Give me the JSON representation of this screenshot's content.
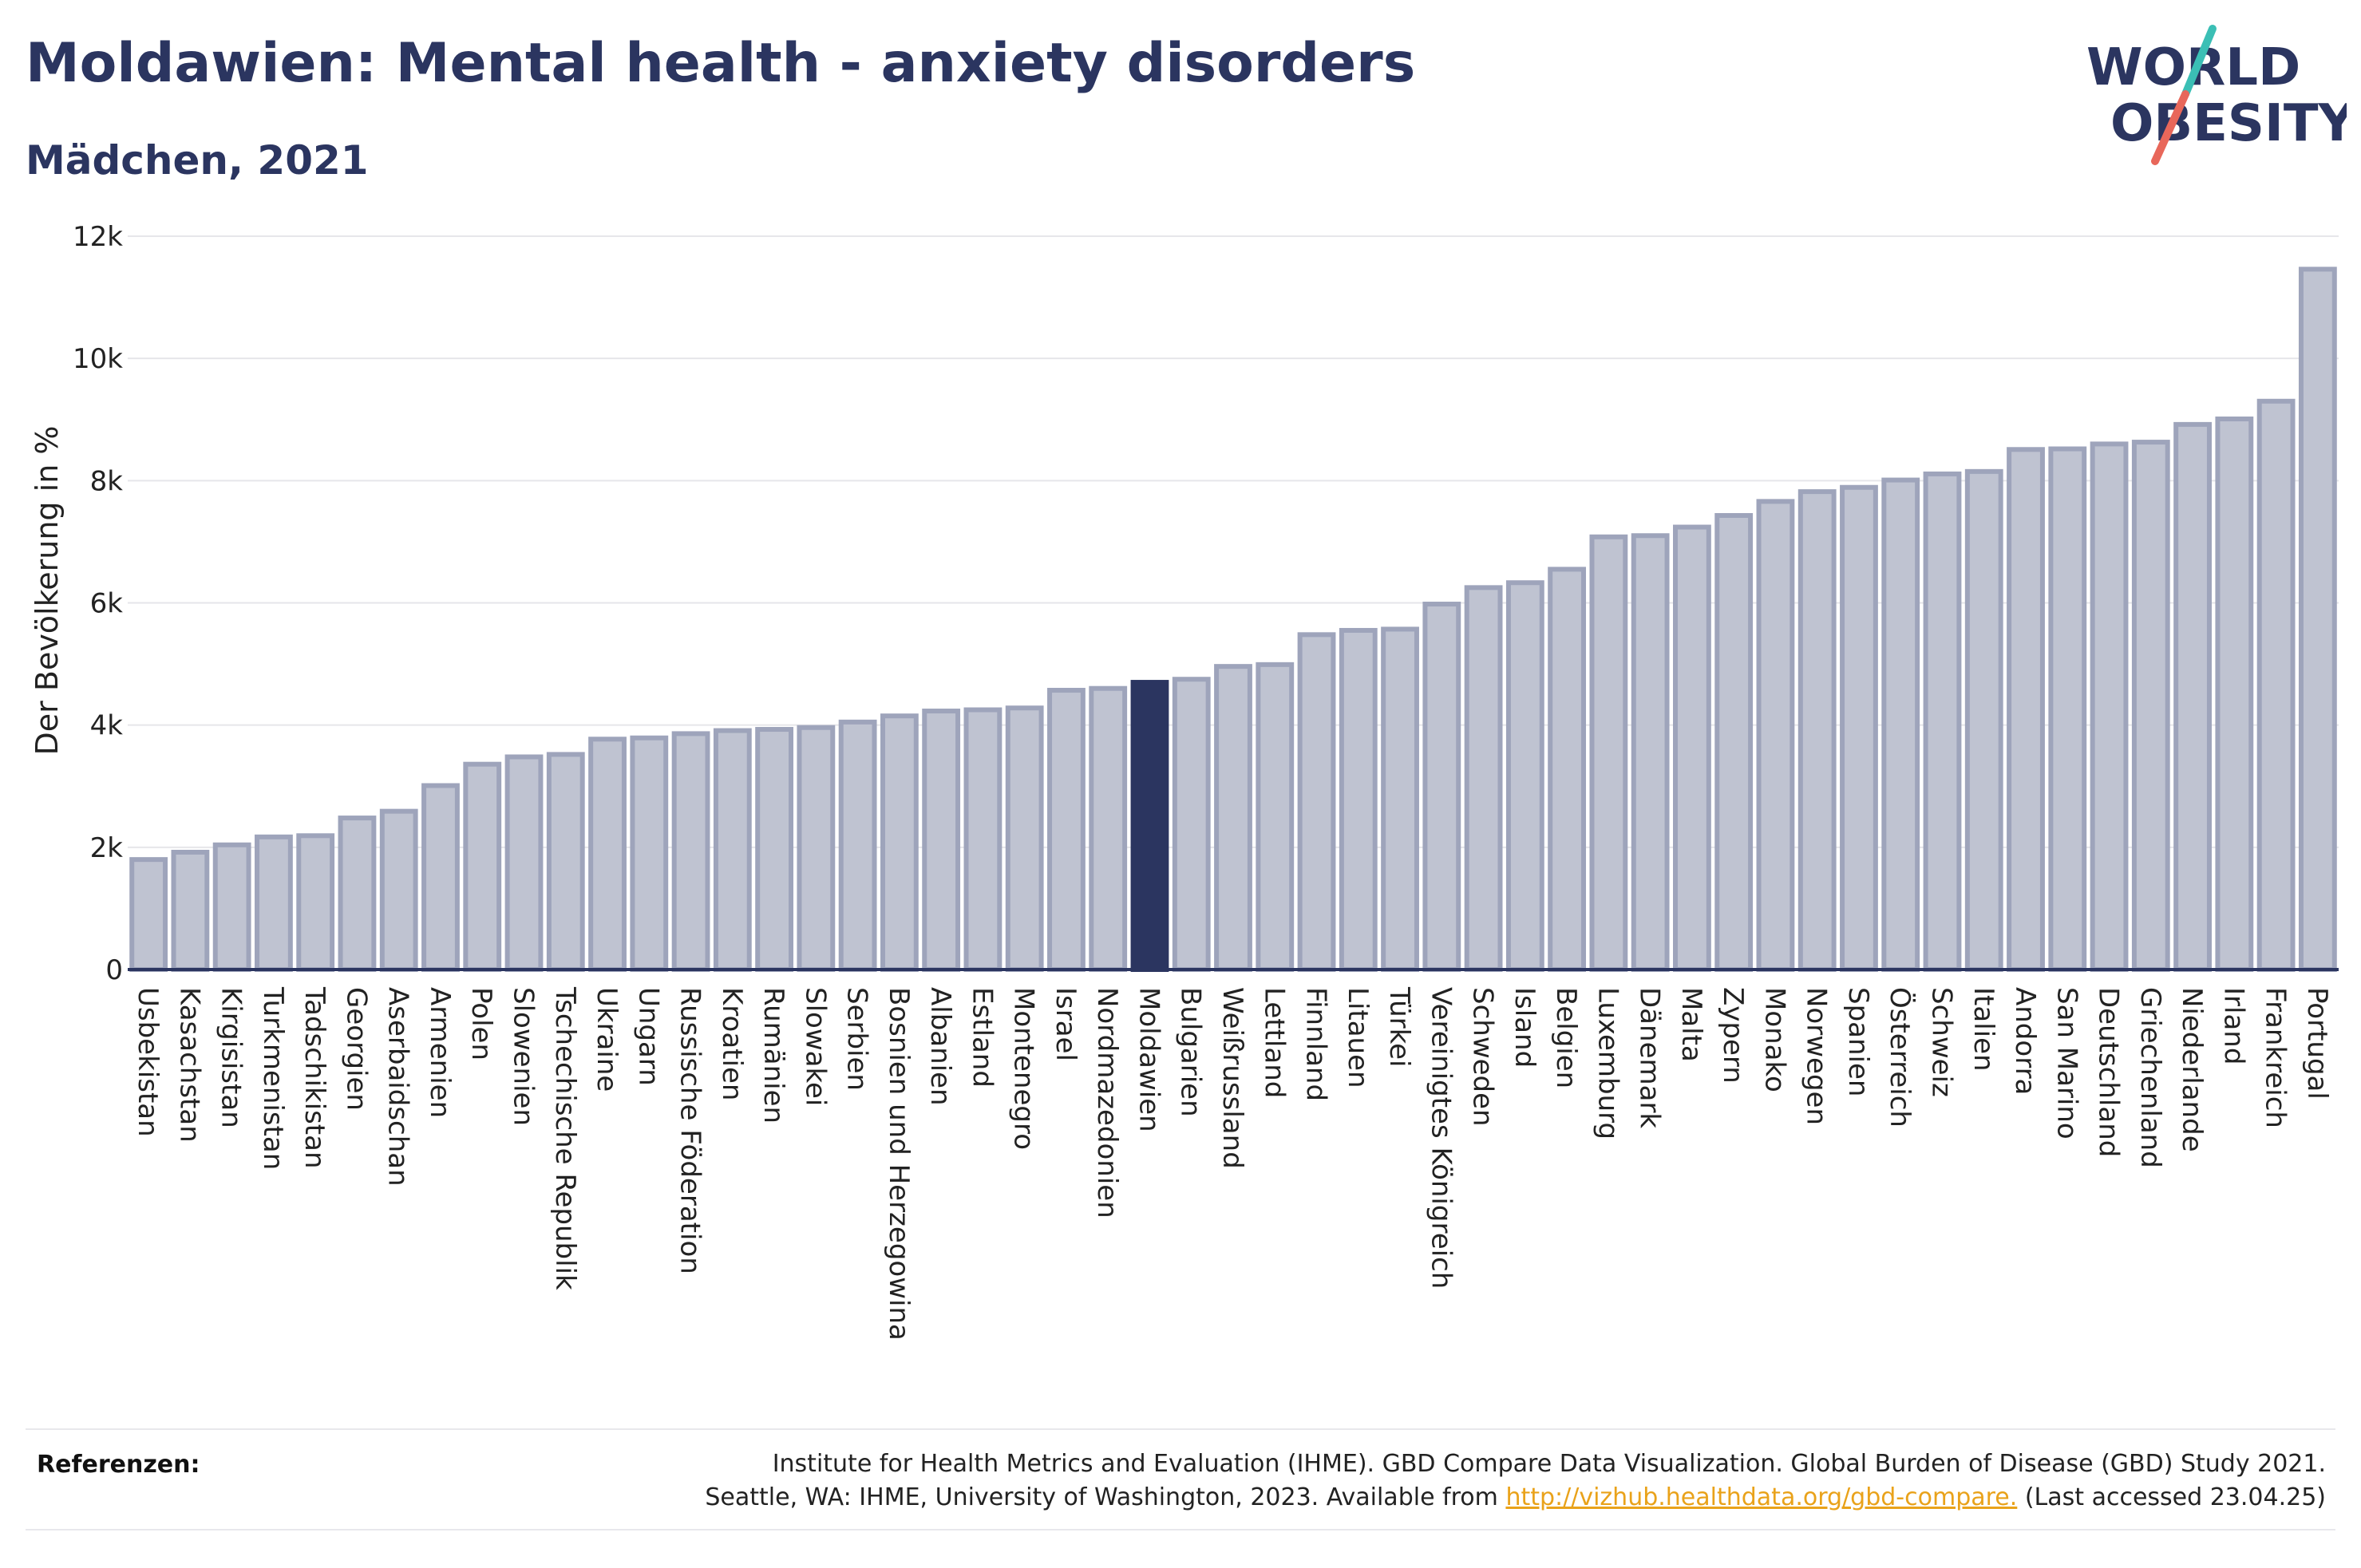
{
  "header": {
    "title": "Moldawien: Mental health - anxiety disorders",
    "subtitle": "Mädchen, 2021"
  },
  "logo": {
    "line1": "WORLD",
    "line2": "OBESITY",
    "colors": {
      "text": "#2b3560",
      "slash_red": "#e8675a",
      "slash_teal": "#3bbfb5"
    }
  },
  "chart_data": {
    "type": "bar",
    "ylabel": "Der Bevölkerung in %",
    "xlabel": "",
    "ylim": [
      0,
      12000
    ],
    "yticks": [
      0,
      2000,
      4000,
      6000,
      8000,
      10000,
      12000
    ],
    "ytick_labels": [
      "0",
      "2k",
      "4k",
      "6k",
      "8k",
      "10k",
      "12k"
    ],
    "grid": true,
    "highlight": "Moldawien",
    "colors": {
      "bar": "#bfc3d1",
      "bar_edge": "#9ea4bb",
      "highlight": "#2b3560",
      "grid": "#e6e6ea",
      "axis": "#2b3560"
    },
    "categories": [
      "Usbekistan",
      "Kasachstan",
      "Kirgisistan",
      "Turkmenistan",
      "Tadschikistan",
      "Georgien",
      "Aserbaidschan",
      "Armenien",
      "Polen",
      "Slowenien",
      "Tschechische Republik",
      "Ukraine",
      "Ungarn",
      "Russische Föderation",
      "Kroatien",
      "Rumänien",
      "Slowakei",
      "Serbien",
      "Bosnien und Herzegowina",
      "Albanien",
      "Estland",
      "Montenegro",
      "Israel",
      "Nordmazedonien",
      "Moldawien",
      "Bulgarien",
      "Weißrussland",
      "Lettland",
      "Finnland",
      "Litauen",
      "Türkei",
      "Vereinigtes Königreich",
      "Schweden",
      "Island",
      "Belgien",
      "Luxemburg",
      "Dänemark",
      "Malta",
      "Zypern",
      "Monako",
      "Norwegen",
      "Spanien",
      "Österreich",
      "Schweiz",
      "Italien",
      "Andorra",
      "San Marino",
      "Deutschland",
      "Griechenland",
      "Niederlande",
      "Irland",
      "Frankreich",
      "Portugal"
    ],
    "values": [
      1800,
      1920,
      2040,
      2170,
      2190,
      2480,
      2590,
      3010,
      3360,
      3480,
      3520,
      3770,
      3790,
      3860,
      3910,
      3930,
      3960,
      4050,
      4150,
      4230,
      4250,
      4280,
      4570,
      4600,
      4700,
      4750,
      4960,
      4990,
      5480,
      5550,
      5570,
      5980,
      6250,
      6330,
      6550,
      7080,
      7100,
      7240,
      7430,
      7660,
      7820,
      7890,
      8010,
      8110,
      8150,
      8510,
      8520,
      8600,
      8630,
      8920,
      9010,
      9300,
      11460
    ]
  },
  "references": {
    "label": "Referenzen:",
    "line1": "Institute for Health Metrics and Evaluation (IHME). GBD Compare Data Visualization. Global Burden of Disease (GBD) Study 2021.",
    "line2_prefix": "Seattle, WA: IHME, University of Washington, 2023. Available from",
    "link": "http://vizhub.healthdata.org/gbd-compare.",
    "line2_suffix": "(Last accessed 23.04.25)"
  }
}
